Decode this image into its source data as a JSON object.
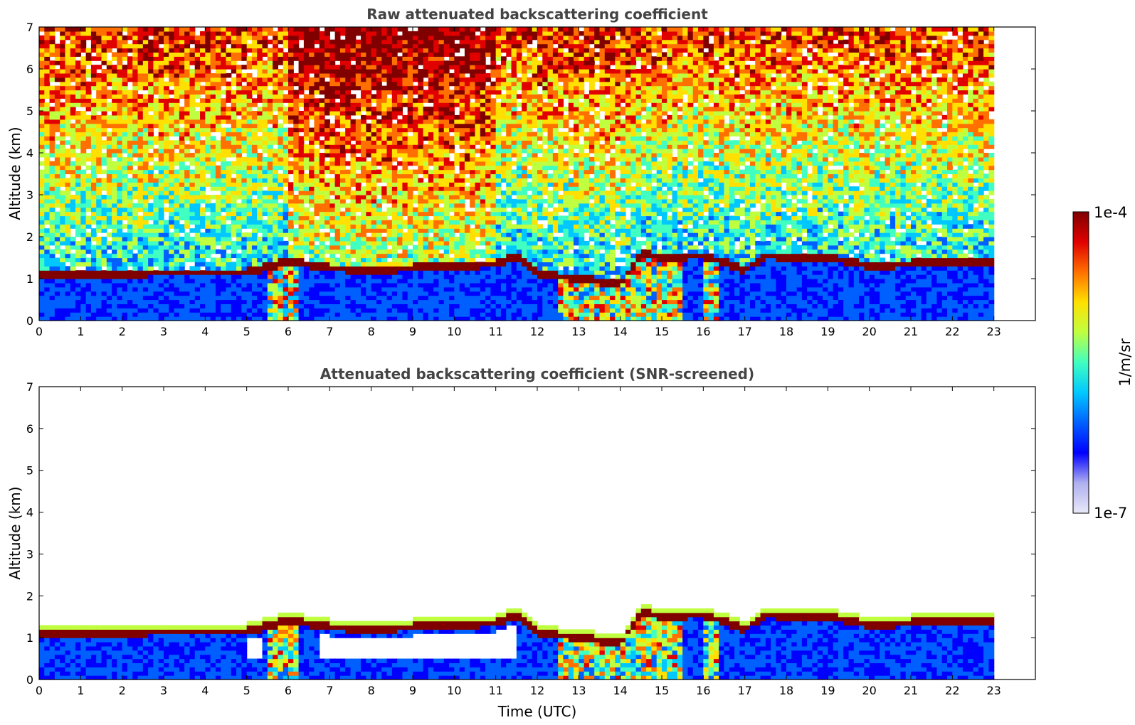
{
  "chart_data": [
    {
      "type": "heatmap",
      "title": "Raw attenuated backscattering coefficient",
      "xlabel": "",
      "ylabel": "Altitude (km)",
      "xlim": [
        0,
        24
      ],
      "ylim": [
        0,
        7
      ],
      "x_ticks": [
        "0",
        "1",
        "2",
        "3",
        "4",
        "5",
        "6",
        "7",
        "8",
        "9",
        "10",
        "11",
        "12",
        "13",
        "14",
        "15",
        "16",
        "17",
        "18",
        "19",
        "20",
        "21",
        "22",
        "23"
      ],
      "y_ticks": [
        "0",
        "1",
        "2",
        "3",
        "4",
        "5",
        "6",
        "7"
      ],
      "data_time_range_utc": [
        0,
        23
      ],
      "cloud_layer": {
        "time_utc": [
          0,
          2,
          4,
          5,
          6,
          7,
          8,
          9,
          10,
          11,
          11.5,
          12,
          13,
          14,
          14.5,
          15,
          16,
          17,
          17.5,
          18,
          19,
          20,
          21,
          22,
          23
        ],
        "altitude_km": [
          1.1,
          1.12,
          1.15,
          1.15,
          1.4,
          1.25,
          1.2,
          1.25,
          1.3,
          1.35,
          1.55,
          1.1,
          1.0,
          0.85,
          1.6,
          1.5,
          1.55,
          1.2,
          1.55,
          1.5,
          1.5,
          1.3,
          1.35,
          1.4,
          1.4
        ]
      }
    },
    {
      "type": "heatmap",
      "title": "Attenuated backscattering coefficient (SNR-screened)",
      "xlabel": "Time (UTC)",
      "ylabel": "Altitude (km)",
      "xlim": [
        0,
        24
      ],
      "ylim": [
        0,
        7
      ],
      "x_ticks": [
        "0",
        "1",
        "2",
        "3",
        "4",
        "5",
        "6",
        "7",
        "8",
        "9",
        "10",
        "11",
        "12",
        "13",
        "14",
        "15",
        "16",
        "17",
        "18",
        "19",
        "20",
        "21",
        "22",
        "23"
      ],
      "y_ticks": [
        "0",
        "1",
        "2",
        "3",
        "4",
        "5",
        "6",
        "7"
      ],
      "data_time_range_utc": [
        0,
        23
      ],
      "cloud_layer": {
        "time_utc": [
          0,
          2,
          4,
          5,
          6,
          7,
          8,
          9,
          10,
          11,
          11.5,
          12,
          13,
          14,
          14.5,
          15,
          16,
          17,
          17.5,
          18,
          19,
          20,
          21,
          22,
          23
        ],
        "altitude_km": [
          1.1,
          1.12,
          1.15,
          1.15,
          1.4,
          1.25,
          1.2,
          1.25,
          1.3,
          1.35,
          1.55,
          1.1,
          1.0,
          0.85,
          1.6,
          1.5,
          1.55,
          1.2,
          1.55,
          1.5,
          1.5,
          1.3,
          1.35,
          1.4,
          1.4
        ]
      }
    }
  ],
  "colorbar": {
    "max_label": "1e-4",
    "min_label": "1e-7",
    "unit_label": "1/m/sr",
    "colors": [
      "#e8e8f8",
      "#b0b0f0",
      "#0000ff",
      "#0060ff",
      "#00c8ff",
      "#40ffc0",
      "#c0ff40",
      "#ffe000",
      "#ff7000",
      "#e00000",
      "#800000"
    ]
  }
}
